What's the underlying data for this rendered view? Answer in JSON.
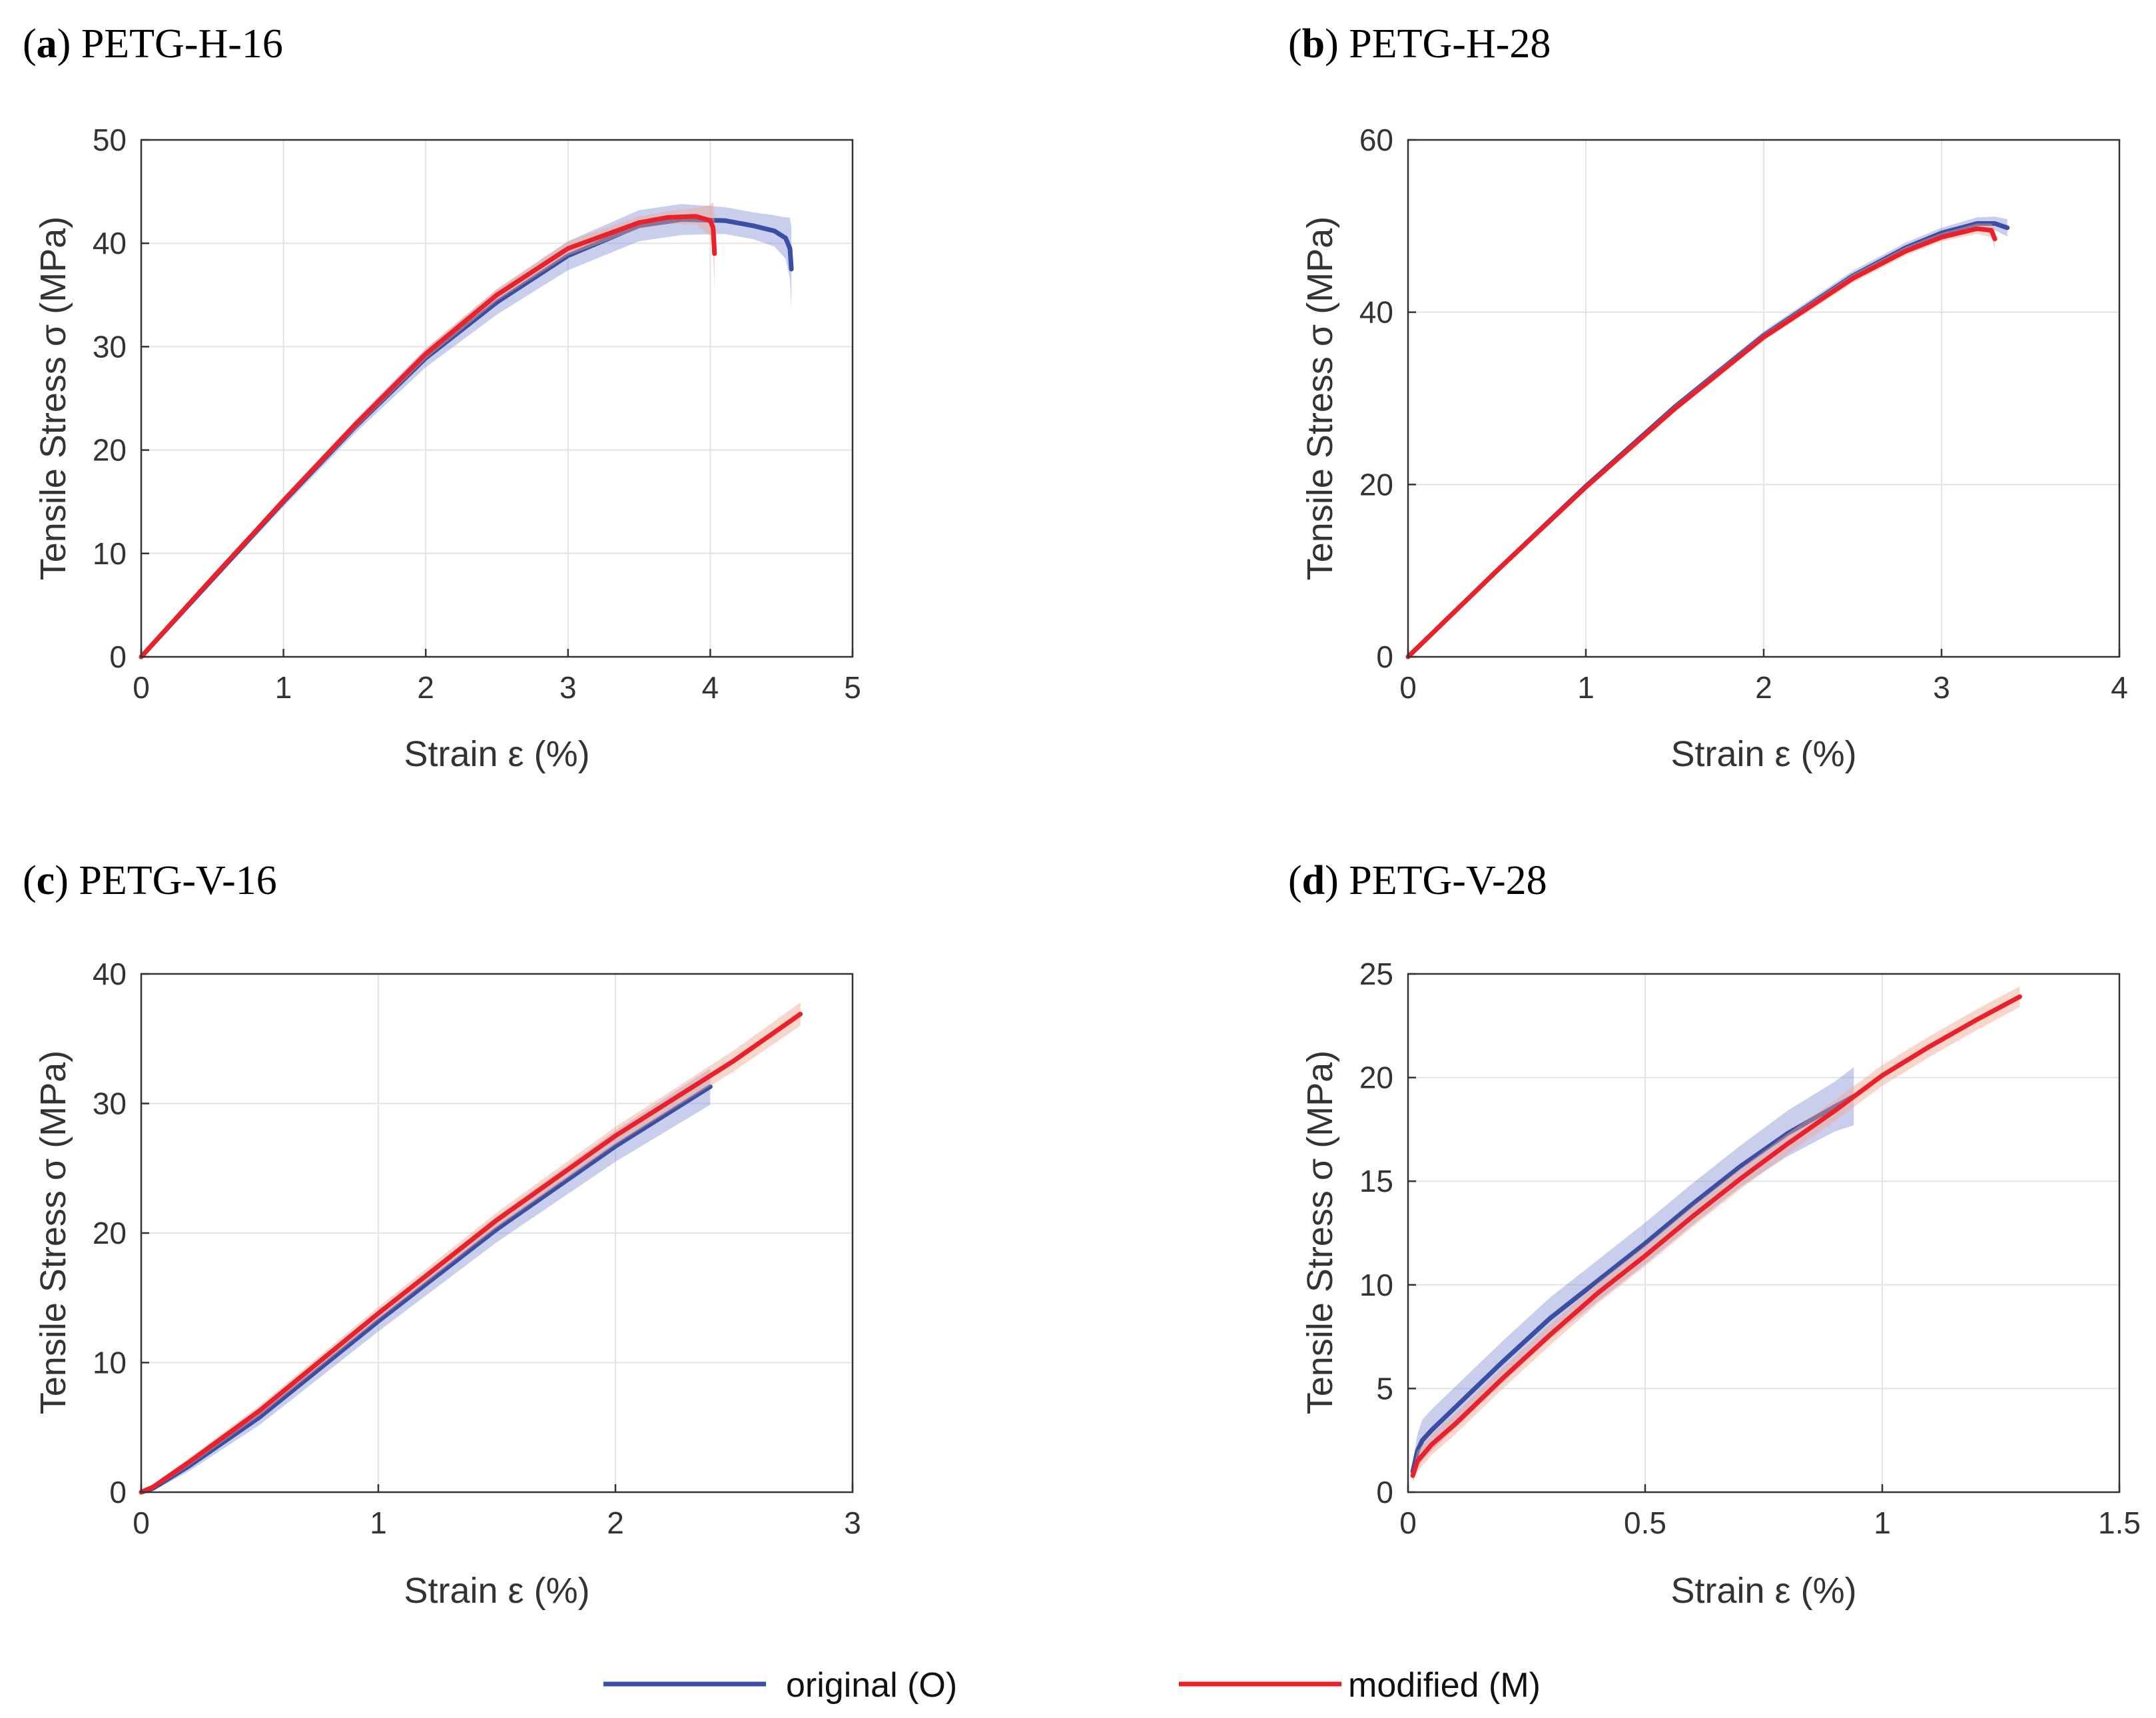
{
  "colors": {
    "original": "#3a4ea3",
    "modified": "#e8212b",
    "original_band": "#8a92d6",
    "modified_band": "#f2a48e"
  },
  "legend": {
    "original_label": "original (O)",
    "modified_label": "modified (M)"
  },
  "chart_data": [
    {
      "type": "line",
      "panel_letter": "a",
      "title": "PETG-H-16",
      "xlabel": "Strain ε (%)",
      "ylabel": "Tensile Stress σ (MPa)",
      "xlim": [
        0,
        5
      ],
      "ylim": [
        0,
        50
      ],
      "xticks": [
        "0",
        "1",
        "2",
        "3",
        "4",
        "5"
      ],
      "yticks": [
        "0",
        "10",
        "20",
        "30",
        "40",
        "50"
      ],
      "grid": true,
      "series": [
        {
          "name": "original (O)",
          "x": [
            0,
            0.5,
            1,
            1.5,
            2,
            2.5,
            3,
            3.5,
            3.8,
            4.1,
            4.3,
            4.45,
            4.53,
            4.56,
            4.57
          ],
          "y": [
            0,
            7.5,
            15,
            22.2,
            28.9,
            34.3,
            38.8,
            41.7,
            42.3,
            42.2,
            41.7,
            41.2,
            40.5,
            39.5,
            37.5
          ],
          "band": [
            0,
            0.3,
            0.5,
            0.6,
            0.9,
            1.2,
            1.4,
            1.5,
            1.5,
            1.3,
            1.3,
            1.5,
            2,
            3,
            4
          ]
        },
        {
          "name": "modified (M)",
          "x": [
            0,
            0.5,
            1,
            1.5,
            2,
            2.5,
            3,
            3.5,
            3.7,
            3.9,
            4.0,
            4.02,
            4.03
          ],
          "y": [
            0,
            7.6,
            15.1,
            22.4,
            29.3,
            35.0,
            39.5,
            42.0,
            42.5,
            42.6,
            42.2,
            41.5,
            39.0
          ],
          "band": [
            0,
            0.2,
            0.3,
            0.4,
            0.5,
            0.6,
            0.7,
            0.6,
            0.6,
            0.8,
            1.5,
            2.5,
            3.5
          ]
        }
      ]
    },
    {
      "type": "line",
      "panel_letter": "b",
      "title": "PETG-H-28",
      "xlabel": "Strain ε (%)",
      "ylabel": "Tensile Stress σ (MPa)",
      "xlim": [
        0,
        4
      ],
      "ylim": [
        0,
        60
      ],
      "xticks": [
        "0",
        "1",
        "2",
        "3",
        "4"
      ],
      "yticks": [
        "0",
        "20",
        "40",
        "60"
      ],
      "grid": true,
      "series": [
        {
          "name": "original (O)",
          "x": [
            0,
            0.5,
            1,
            1.5,
            2,
            2.5,
            2.8,
            3.0,
            3.2,
            3.3,
            3.37
          ],
          "y": [
            0,
            10,
            19.8,
            29.0,
            37.3,
            44.2,
            47.5,
            49.2,
            50.3,
            50.3,
            49.8
          ],
          "band": [
            0,
            0.2,
            0.3,
            0.4,
            0.5,
            0.6,
            0.6,
            0.6,
            0.7,
            0.8,
            1.0
          ]
        },
        {
          "name": "modified (M)",
          "x": [
            0,
            0.5,
            1,
            1.5,
            2,
            2.5,
            2.8,
            3.0,
            3.2,
            3.28,
            3.3
          ],
          "y": [
            0,
            10,
            19.7,
            28.8,
            37.1,
            43.9,
            47.1,
            48.7,
            49.7,
            49.5,
            48.5
          ],
          "band": [
            0,
            0.2,
            0.3,
            0.4,
            0.4,
            0.5,
            0.5,
            0.5,
            0.6,
            0.8,
            1.2
          ]
        }
      ]
    },
    {
      "type": "line",
      "panel_letter": "c",
      "title": "PETG-V-16",
      "xlabel": "Strain ε (%)",
      "ylabel": "Tensile Stress σ (MPa)",
      "xlim": [
        0,
        3
      ],
      "ylim": [
        0,
        40
      ],
      "xticks": [
        "0",
        "1",
        "2",
        "3"
      ],
      "yticks": [
        "0",
        "10",
        "20",
        "30",
        "40"
      ],
      "grid": true,
      "series": [
        {
          "name": "original (O)",
          "x": [
            0,
            0.05,
            0.2,
            0.5,
            1,
            1.5,
            2,
            2.4
          ],
          "y": [
            0,
            0.3,
            2.0,
            5.8,
            13.2,
            20.3,
            26.7,
            31.3
          ],
          "band": [
            0,
            0.2,
            0.4,
            0.6,
            0.8,
            1.0,
            1.2,
            1.4
          ]
        },
        {
          "name": "modified (M)",
          "x": [
            0,
            0.05,
            0.2,
            0.5,
            1,
            1.5,
            2,
            2.5,
            2.78
          ],
          "y": [
            0,
            0.4,
            2.3,
            6.3,
            13.8,
            21.0,
            27.5,
            33.3,
            36.9
          ],
          "band": [
            0,
            0.2,
            0.3,
            0.4,
            0.5,
            0.6,
            0.7,
            0.8,
            0.9
          ]
        }
      ]
    },
    {
      "type": "line",
      "panel_letter": "d",
      "title": "PETG-V-28",
      "xlabel": "Strain ε (%)",
      "ylabel": "Tensile Stress σ (MPa)",
      "xlim": [
        0,
        1.5
      ],
      "ylim": [
        0,
        25
      ],
      "xticks": [
        "0",
        "0.5",
        "1",
        "1.5"
      ],
      "yticks": [
        "0",
        "5",
        "10",
        "15",
        "20",
        "25"
      ],
      "grid": true,
      "series": [
        {
          "name": "original (O)",
          "x": [
            0.01,
            0.02,
            0.03,
            0.05,
            0.1,
            0.2,
            0.3,
            0.4,
            0.5,
            0.6,
            0.7,
            0.8,
            0.9,
            0.94
          ],
          "y": [
            1.0,
            2.0,
            2.5,
            3.0,
            4.1,
            6.3,
            8.4,
            10.2,
            12.0,
            13.9,
            15.7,
            17.3,
            18.6,
            19.1
          ],
          "band": [
            0.5,
            0.8,
            1.0,
            1.0,
            1.0,
            1.0,
            1.0,
            1.0,
            1.0,
            1.0,
            1.0,
            1.1,
            1.2,
            1.4
          ]
        },
        {
          "name": "modified (M)",
          "x": [
            0.01,
            0.02,
            0.05,
            0.1,
            0.2,
            0.3,
            0.4,
            0.5,
            0.6,
            0.7,
            0.8,
            0.9,
            1.0,
            1.1,
            1.2,
            1.29
          ],
          "y": [
            0.8,
            1.5,
            2.3,
            3.3,
            5.5,
            7.6,
            9.6,
            11.4,
            13.3,
            15.1,
            16.8,
            18.4,
            20.1,
            21.5,
            22.8,
            23.9
          ],
          "band": [
            0.3,
            0.5,
            0.5,
            0.5,
            0.5,
            0.5,
            0.5,
            0.5,
            0.5,
            0.5,
            0.5,
            0.5,
            0.5,
            0.5,
            0.5,
            0.5
          ]
        }
      ]
    }
  ]
}
